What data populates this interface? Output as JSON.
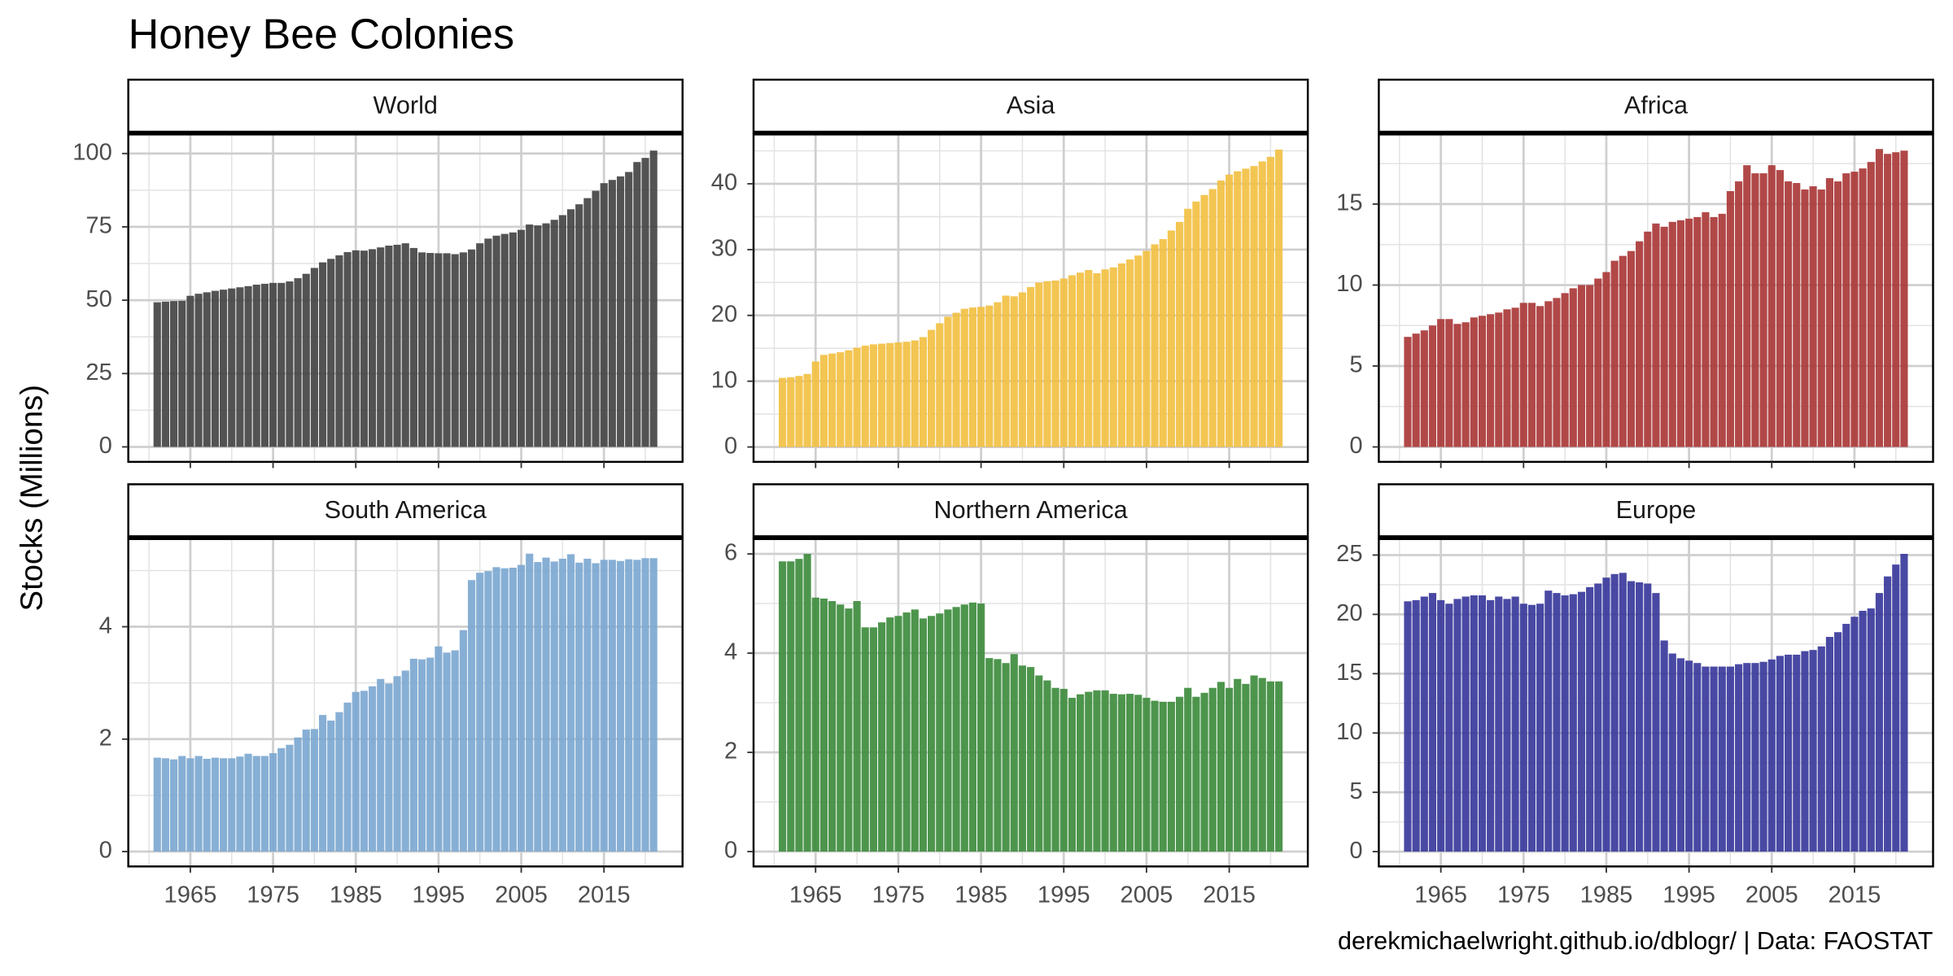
{
  "title": "Honey Bee Colonies",
  "y_label": "Stocks (Millions)",
  "caption": "derekmichaelwright.github.io/dblogr/ | Data: FAOSTAT",
  "chart_data": [
    {
      "type": "bar",
      "title": "World",
      "color": "#404040",
      "x": [
        1961,
        1962,
        1963,
        1964,
        1965,
        1966,
        1967,
        1968,
        1969,
        1970,
        1971,
        1972,
        1973,
        1974,
        1975,
        1976,
        1977,
        1978,
        1979,
        1980,
        1981,
        1982,
        1983,
        1984,
        1985,
        1986,
        1987,
        1988,
        1989,
        1990,
        1991,
        1992,
        1993,
        1994,
        1995,
        1996,
        1997,
        1998,
        1999,
        2000,
        2001,
        2002,
        2003,
        2004,
        2005,
        2006,
        2007,
        2008,
        2009,
        2010,
        2011,
        2012,
        2013,
        2014,
        2015,
        2016,
        2017,
        2018,
        2019,
        2020,
        2021
      ],
      "values": [
        49.3,
        49.5,
        49.7,
        49.8,
        51.5,
        52.2,
        52.7,
        53.2,
        53.6,
        54.0,
        54.4,
        54.8,
        55.3,
        55.6,
        55.9,
        55.9,
        56.4,
        57.5,
        59.0,
        61.0,
        62.9,
        64.1,
        65.3,
        66.4,
        67.0,
        66.9,
        67.4,
        68.0,
        68.6,
        68.9,
        69.4,
        67.8,
        66.3,
        66.1,
        66.0,
        66.0,
        65.7,
        66.3,
        67.3,
        69.4,
        71.0,
        72.0,
        72.6,
        73.1,
        74.0,
        75.8,
        75.5,
        76.2,
        77.4,
        79.0,
        81.0,
        82.7,
        84.8,
        87.3,
        89.9,
        91.0,
        92.2,
        93.7,
        97.1,
        98.5,
        101.0
      ],
      "xlim": [
        1957.5,
        2024.5
      ],
      "xticks": [
        1965,
        1975,
        1985,
        1995,
        2005,
        2015
      ],
      "x_minor_ticks": [
        1960,
        1970,
        1980,
        1990,
        2000,
        2010,
        2020
      ],
      "ylim": [
        -5.1,
        106.5
      ],
      "yticks": [
        0,
        25,
        50,
        75,
        100
      ],
      "y_minor_ticks": [
        12.5,
        37.5,
        62.5,
        87.5
      ],
      "grid": true
    },
    {
      "type": "bar",
      "title": "Asia",
      "color": "#f2bf3f",
      "x": [
        1961,
        1962,
        1963,
        1964,
        1965,
        1966,
        1967,
        1968,
        1969,
        1970,
        1971,
        1972,
        1973,
        1974,
        1975,
        1976,
        1977,
        1978,
        1979,
        1980,
        1981,
        1982,
        1983,
        1984,
        1985,
        1986,
        1987,
        1988,
        1989,
        1990,
        1991,
        1992,
        1993,
        1994,
        1995,
        1996,
        1997,
        1998,
        1999,
        2000,
        2001,
        2002,
        2003,
        2004,
        2005,
        2006,
        2007,
        2008,
        2009,
        2010,
        2011,
        2012,
        2013,
        2014,
        2015,
        2016,
        2017,
        2018,
        2019,
        2020,
        2021
      ],
      "values": [
        10.5,
        10.6,
        10.8,
        11.1,
        13.0,
        14.0,
        14.2,
        14.4,
        14.7,
        15.1,
        15.4,
        15.6,
        15.7,
        15.8,
        15.9,
        16.0,
        16.2,
        16.7,
        17.8,
        18.8,
        19.8,
        20.4,
        21.0,
        21.2,
        21.3,
        21.5,
        22.0,
        23.0,
        22.9,
        23.5,
        24.3,
        25.0,
        25.2,
        25.3,
        25.6,
        26.1,
        26.5,
        26.9,
        26.4,
        27.0,
        27.3,
        27.9,
        28.5,
        29.1,
        29.8,
        30.8,
        31.6,
        32.9,
        34.2,
        36.2,
        37.3,
        38.3,
        39.2,
        40.5,
        41.4,
        41.9,
        42.3,
        42.7,
        43.4,
        44.1,
        45.2
      ],
      "xlim": [
        1957.5,
        2024.5
      ],
      "xticks": [
        1965,
        1975,
        1985,
        1995,
        2005,
        2015
      ],
      "x_minor_ticks": [
        1960,
        1970,
        1980,
        1990,
        2000,
        2010,
        2020
      ],
      "ylim": [
        -2.26,
        47.5
      ],
      "yticks": [
        0,
        10,
        20,
        30,
        40
      ],
      "y_minor_ticks": [
        5,
        15,
        25,
        35,
        45
      ],
      "grid": true
    },
    {
      "type": "bar",
      "title": "Africa",
      "color": "#a83434",
      "x": [
        1961,
        1962,
        1963,
        1964,
        1965,
        1966,
        1967,
        1968,
        1969,
        1970,
        1971,
        1972,
        1973,
        1974,
        1975,
        1976,
        1977,
        1978,
        1979,
        1980,
        1981,
        1982,
        1983,
        1984,
        1985,
        1986,
        1987,
        1988,
        1989,
        1990,
        1991,
        1992,
        1993,
        1994,
        1995,
        1996,
        1997,
        1998,
        1999,
        2000,
        2001,
        2002,
        2003,
        2004,
        2005,
        2006,
        2007,
        2008,
        2009,
        2010,
        2011,
        2012,
        2013,
        2014,
        2015,
        2016,
        2017,
        2018,
        2019,
        2020,
        2021
      ],
      "values": [
        6.8,
        7.0,
        7.2,
        7.5,
        7.9,
        7.9,
        7.6,
        7.7,
        8.0,
        8.1,
        8.2,
        8.3,
        8.5,
        8.6,
        8.9,
        8.9,
        8.7,
        9.0,
        9.2,
        9.5,
        9.8,
        10.0,
        10.0,
        10.4,
        10.8,
        11.5,
        11.8,
        12.1,
        12.7,
        13.3,
        13.8,
        13.6,
        13.9,
        14.0,
        14.1,
        14.2,
        14.5,
        14.2,
        14.4,
        15.8,
        16.4,
        17.4,
        16.9,
        16.9,
        17.4,
        17.1,
        16.4,
        16.3,
        15.9,
        16.1,
        15.9,
        16.6,
        16.4,
        16.9,
        17.0,
        17.2,
        17.6,
        18.4,
        18.1,
        18.2,
        18.3
      ],
      "xlim": [
        1957.5,
        2024.5
      ],
      "xticks": [
        1965,
        1975,
        1985,
        1995,
        2005,
        2015
      ],
      "x_minor_ticks": [
        1960,
        1970,
        1980,
        1990,
        2000,
        2010,
        2020
      ],
      "ylim": [
        -0.92,
        19.3
      ],
      "yticks": [
        0,
        5,
        10,
        15
      ],
      "y_minor_ticks": [
        2.5,
        7.5,
        12.5,
        17.5
      ],
      "grid": true
    },
    {
      "type": "bar",
      "title": "South America",
      "color": "#7aa6d0",
      "x": [
        1961,
        1962,
        1963,
        1964,
        1965,
        1966,
        1967,
        1968,
        1969,
        1970,
        1971,
        1972,
        1973,
        1974,
        1975,
        1976,
        1977,
        1978,
        1979,
        1980,
        1981,
        1982,
        1983,
        1984,
        1985,
        1986,
        1987,
        1988,
        1989,
        1990,
        1991,
        1992,
        1993,
        1994,
        1995,
        1996,
        1997,
        1998,
        1999,
        2000,
        2001,
        2002,
        2003,
        2004,
        2005,
        2006,
        2007,
        2008,
        2009,
        2010,
        2011,
        2012,
        2013,
        2014,
        2015,
        2016,
        2017,
        2018,
        2019,
        2020,
        2021
      ],
      "values": [
        1.67,
        1.66,
        1.64,
        1.7,
        1.66,
        1.7,
        1.65,
        1.67,
        1.66,
        1.66,
        1.69,
        1.74,
        1.7,
        1.7,
        1.75,
        1.84,
        1.9,
        2.03,
        2.17,
        2.18,
        2.43,
        2.33,
        2.48,
        2.65,
        2.84,
        2.86,
        2.94,
        3.07,
        2.99,
        3.12,
        3.22,
        3.43,
        3.42,
        3.45,
        3.65,
        3.54,
        3.58,
        3.94,
        4.83,
        4.96,
        4.99,
        5.06,
        5.04,
        5.05,
        5.1,
        5.3,
        5.15,
        5.23,
        5.16,
        5.21,
        5.29,
        5.14,
        5.21,
        5.13,
        5.19,
        5.19,
        5.17,
        5.2,
        5.19,
        5.22,
        5.22
      ],
      "xlim": [
        1957.5,
        2024.5
      ],
      "xticks": [
        1965,
        1975,
        1985,
        1995,
        2005,
        2015
      ],
      "x_minor_ticks": [
        1960,
        1970,
        1980,
        1990,
        2000,
        2010,
        2020
      ],
      "ylim": [
        -0.265,
        5.56
      ],
      "yticks": [
        0,
        2,
        4
      ],
      "y_minor_ticks": [
        1,
        3,
        5
      ],
      "grid": true
    },
    {
      "type": "bar",
      "title": "Northern America",
      "color": "#3a8a3a",
      "x": [
        1961,
        1962,
        1963,
        1964,
        1965,
        1966,
        1967,
        1968,
        1969,
        1970,
        1971,
        1972,
        1973,
        1974,
        1975,
        1976,
        1977,
        1978,
        1979,
        1980,
        1981,
        1982,
        1983,
        1984,
        1985,
        1986,
        1987,
        1988,
        1989,
        1990,
        1991,
        1992,
        1993,
        1994,
        1995,
        1996,
        1997,
        1998,
        1999,
        2000,
        2001,
        2002,
        2003,
        2004,
        2005,
        2006,
        2007,
        2008,
        2009,
        2010,
        2011,
        2012,
        2013,
        2014,
        2015,
        2016,
        2017,
        2018,
        2019,
        2020,
        2021
      ],
      "values": [
        5.85,
        5.85,
        5.9,
        6.0,
        5.12,
        5.1,
        5.05,
        4.98,
        4.9,
        5.05,
        4.52,
        4.52,
        4.62,
        4.72,
        4.75,
        4.82,
        4.88,
        4.7,
        4.75,
        4.8,
        4.88,
        4.93,
        4.98,
        5.02,
        5.0,
        3.9,
        3.88,
        3.8,
        3.98,
        3.75,
        3.72,
        3.55,
        3.45,
        3.3,
        3.28,
        3.1,
        3.17,
        3.22,
        3.25,
        3.25,
        3.18,
        3.17,
        3.18,
        3.16,
        3.1,
        3.04,
        3.02,
        3.02,
        3.12,
        3.3,
        3.12,
        3.2,
        3.3,
        3.42,
        3.3,
        3.48,
        3.38,
        3.55,
        3.5,
        3.43,
        3.43
      ],
      "xlim": [
        1957.5,
        2024.5
      ],
      "xticks": [
        1965,
        1975,
        1985,
        1995,
        2005,
        2015
      ],
      "x_minor_ticks": [
        1960,
        1970,
        1980,
        1990,
        2000,
        2010,
        2020
      ],
      "ylim": [
        -0.3,
        6.3
      ],
      "yticks": [
        0,
        2,
        4,
        6
      ],
      "y_minor_ticks": [
        1,
        3,
        5
      ],
      "grid": true
    },
    {
      "type": "bar",
      "title": "Europe",
      "color": "#35359a",
      "x": [
        1961,
        1962,
        1963,
        1964,
        1965,
        1966,
        1967,
        1968,
        1969,
        1970,
        1971,
        1972,
        1973,
        1974,
        1975,
        1976,
        1977,
        1978,
        1979,
        1980,
        1981,
        1982,
        1983,
        1984,
        1985,
        1986,
        1987,
        1988,
        1989,
        1990,
        1991,
        1992,
        1993,
        1994,
        1995,
        1996,
        1997,
        1998,
        1999,
        2000,
        2001,
        2002,
        2003,
        2004,
        2005,
        2006,
        2007,
        2008,
        2009,
        2010,
        2011,
        2012,
        2013,
        2014,
        2015,
        2016,
        2017,
        2018,
        2019,
        2020,
        2021
      ],
      "values": [
        21.1,
        21.2,
        21.5,
        21.8,
        21.2,
        20.9,
        21.3,
        21.5,
        21.6,
        21.6,
        21.2,
        21.5,
        21.3,
        21.5,
        20.9,
        20.8,
        20.9,
        22.0,
        21.8,
        21.6,
        21.7,
        21.9,
        22.3,
        22.6,
        23.1,
        23.4,
        23.5,
        22.8,
        22.7,
        22.6,
        21.8,
        17.8,
        16.7,
        16.3,
        16.1,
        15.9,
        15.6,
        15.6,
        15.6,
        15.6,
        15.8,
        15.9,
        15.9,
        16.0,
        16.2,
        16.5,
        16.6,
        16.6,
        16.9,
        17.0,
        17.3,
        18.1,
        18.5,
        19.2,
        19.8,
        20.3,
        20.5,
        21.8,
        23.2,
        24.2,
        25.1
      ],
      "xlim": [
        1957.5,
        2024.5
      ],
      "xticks": [
        1965,
        1975,
        1985,
        1995,
        2005,
        2015
      ],
      "x_minor_ticks": [
        1960,
        1970,
        1980,
        1990,
        2000,
        2010,
        2020
      ],
      "ylim": [
        -1.25,
        26.35
      ],
      "yticks": [
        0,
        5,
        10,
        15,
        20,
        25
      ],
      "y_minor_ticks": [
        2.5,
        7.5,
        12.5,
        17.5,
        22.5
      ],
      "grid": true
    }
  ]
}
